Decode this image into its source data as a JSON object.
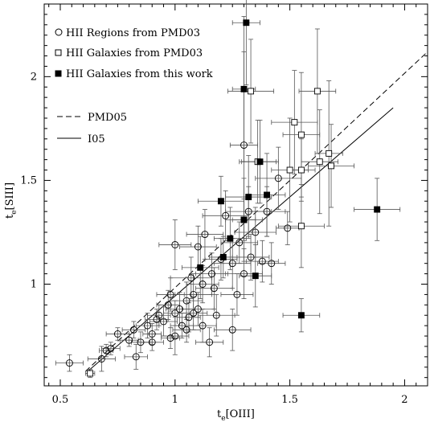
{
  "chart_data": {
    "type": "scatter",
    "xlabel": "t_e[OIII]",
    "ylabel": "t_e[SIII]",
    "xlabel_main": "t",
    "xlabel_sub": "e",
    "xlabel_rest": "[OIII]",
    "ylabel_main": "t",
    "ylabel_sub": "e",
    "ylabel_rest": "[SIII]",
    "xlim": [
      0.43,
      2.1
    ],
    "ylim": [
      0.51,
      2.35
    ],
    "xticks": [
      0.5,
      1,
      1.5,
      2
    ],
    "xtick_labels": [
      "0.5",
      "1",
      "1.5",
      "2"
    ],
    "yticks": [
      1,
      1.5,
      2
    ],
    "ytick_labels": [
      "1",
      "1.5",
      "2"
    ],
    "grid": false,
    "legend_position": "top-left",
    "legend": [
      {
        "label": "HII Regions from PMD03",
        "marker": "circle-open"
      },
      {
        "label": "HII Galaxies from PMD03",
        "marker": "square-open"
      },
      {
        "label": "HII Galaxies from this work",
        "marker": "square-filled"
      },
      {
        "label": "PMD05",
        "line": "dashed"
      },
      {
        "label": "I05",
        "line": "solid"
      }
    ],
    "lines": [
      {
        "name": "PMD05",
        "style": "dashed",
        "x": [
          0.61,
          2.1
        ],
        "y": [
          0.58,
          2.12
        ]
      },
      {
        "name": "I05",
        "style": "solid",
        "x": [
          0.62,
          1.95
        ],
        "y": [
          0.58,
          1.85
        ]
      }
    ],
    "series": [
      {
        "name": "HII Regions from PMD03",
        "marker": "circle-open",
        "points": [
          [
            0.54,
            0.62,
            0.06,
            0.04
          ],
          [
            0.68,
            0.64,
            0.06,
            0.06
          ],
          [
            0.72,
            0.69,
            0.04,
            0.03
          ],
          [
            0.7,
            0.68,
            0.03,
            0.03
          ],
          [
            0.75,
            0.76,
            0.05,
            0.03
          ],
          [
            0.8,
            0.73,
            0.04,
            0.03
          ],
          [
            0.82,
            0.78,
            0.05,
            0.04
          ],
          [
            0.85,
            0.72,
            0.04,
            0.05
          ],
          [
            0.83,
            0.65,
            0.05,
            0.06
          ],
          [
            0.88,
            0.8,
            0.05,
            0.06
          ],
          [
            0.9,
            0.76,
            0.04,
            0.05
          ],
          [
            0.93,
            0.85,
            0.05,
            0.05
          ],
          [
            0.95,
            0.82,
            0.06,
            0.07
          ],
          [
            0.97,
            0.9,
            0.05,
            0.07
          ],
          [
            0.98,
            0.95,
            0.06,
            0.08
          ],
          [
            1.0,
            0.86,
            0.05,
            0.06
          ],
          [
            1.0,
            0.75,
            0.06,
            0.09
          ],
          [
            1.02,
            0.88,
            0.06,
            0.08
          ],
          [
            1.03,
            0.8,
            0.05,
            0.06
          ],
          [
            1.05,
            0.92,
            0.07,
            0.09
          ],
          [
            1.06,
            0.84,
            0.05,
            0.07
          ],
          [
            1.08,
            0.95,
            0.08,
            0.1
          ],
          [
            1.1,
            0.88,
            0.07,
            0.08
          ],
          [
            1.12,
            0.8,
            0.06,
            0.08
          ],
          [
            1.0,
            1.19,
            0.07,
            0.12
          ],
          [
            1.07,
            1.03,
            0.09,
            0.1
          ],
          [
            1.1,
            1.18,
            0.08,
            0.1
          ],
          [
            1.12,
            1.0,
            0.07,
            0.09
          ],
          [
            1.13,
            1.24,
            0.08,
            0.12
          ],
          [
            1.16,
            1.05,
            0.07,
            0.1
          ],
          [
            1.18,
            0.85,
            0.08,
            0.1
          ],
          [
            1.2,
            1.12,
            0.07,
            0.1
          ],
          [
            1.22,
            1.33,
            0.1,
            0.12
          ],
          [
            1.25,
            0.78,
            0.08,
            0.1
          ],
          [
            1.25,
            1.1,
            0.08,
            0.12
          ],
          [
            1.27,
            0.95,
            0.07,
            0.1
          ],
          [
            1.28,
            1.2,
            0.08,
            0.1
          ],
          [
            1.3,
            1.05,
            0.08,
            0.12
          ],
          [
            1.32,
            1.35,
            0.1,
            0.12
          ],
          [
            1.33,
            1.13,
            0.08,
            0.11
          ],
          [
            1.35,
            1.25,
            0.09,
            0.12
          ],
          [
            1.38,
            1.11,
            0.07,
            0.1
          ],
          [
            1.4,
            1.35,
            0.08,
            0.12
          ],
          [
            1.42,
            1.1,
            0.06,
            0.1
          ],
          [
            1.45,
            1.51,
            0.1,
            0.15
          ],
          [
            1.49,
            1.27,
            0.05,
            0.08
          ],
          [
            1.3,
            1.67,
            0.06,
            0.45
          ],
          [
            1.15,
            0.72,
            0.06,
            0.07
          ],
          [
            0.9,
            0.72,
            0.05,
            0.04
          ],
          [
            0.98,
            0.74,
            0.04,
            0.05
          ],
          [
            1.05,
            0.78,
            0.06,
            0.06
          ],
          [
            0.92,
            0.83,
            0.05,
            0.05
          ],
          [
            1.08,
            0.86,
            0.06,
            0.08
          ],
          [
            1.17,
            0.98,
            0.08,
            0.1
          ]
        ]
      },
      {
        "name": "HII Galaxies from PMD03",
        "marker": "square-open",
        "points": [
          [
            0.63,
            0.57,
            0.02,
            0.02
          ],
          [
            1.3,
            1.31,
            0.05,
            0.1
          ],
          [
            1.33,
            1.93,
            0.1,
            0.25
          ],
          [
            1.36,
            1.59,
            0.08,
            0.2
          ],
          [
            1.5,
            1.55,
            0.08,
            0.25
          ],
          [
            1.52,
            1.78,
            0.1,
            0.25
          ],
          [
            1.55,
            1.72,
            0.08,
            0.3
          ],
          [
            1.55,
            1.28,
            0.1,
            0.2
          ],
          [
            1.62,
            1.93,
            0.08,
            0.3
          ],
          [
            1.63,
            1.59,
            0.08,
            0.25
          ],
          [
            1.67,
            1.63,
            0.06,
            0.35
          ],
          [
            1.68,
            1.57,
            0.1,
            0.2
          ],
          [
            1.55,
            1.55,
            0.06,
            0.15
          ]
        ]
      },
      {
        "name": "HII Galaxies from this work",
        "marker": "square-filled",
        "points": [
          [
            1.31,
            2.26,
            0.06,
            0.3
          ],
          [
            1.3,
            1.94,
            0.05,
            0.35
          ],
          [
            1.37,
            1.59,
            0.08,
            0.2
          ],
          [
            1.4,
            1.43,
            0.08,
            0.2
          ],
          [
            1.2,
            1.4,
            0.1,
            0.12
          ],
          [
            1.32,
            1.42,
            0.1,
            0.2
          ],
          [
            1.3,
            1.31,
            0.08,
            0.2
          ],
          [
            1.24,
            1.22,
            0.07,
            0.15
          ],
          [
            1.21,
            1.13,
            0.06,
            0.1
          ],
          [
            1.11,
            1.08,
            0.08,
            0.15
          ],
          [
            1.35,
            1.04,
            0.07,
            0.15
          ],
          [
            1.88,
            1.36,
            0.1,
            0.15
          ],
          [
            1.55,
            0.85,
            0.08,
            0.08
          ]
        ]
      }
    ]
  }
}
